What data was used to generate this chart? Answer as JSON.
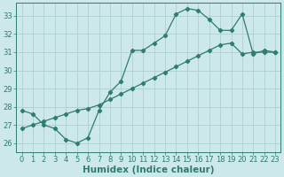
{
  "line1_x": [
    0,
    1,
    2,
    3,
    4,
    5,
    6,
    7,
    8,
    9,
    10,
    11,
    12,
    13,
    14,
    15,
    16,
    17,
    18,
    19,
    20,
    21,
    22,
    23
  ],
  "line1_y": [
    27.8,
    27.6,
    27.0,
    26.8,
    26.2,
    26.0,
    26.3,
    27.8,
    28.8,
    29.4,
    31.1,
    31.1,
    31.5,
    31.9,
    33.1,
    33.4,
    33.3,
    32.8,
    32.2,
    32.2,
    33.1,
    30.9,
    31.1,
    31.0
  ],
  "line2_x": [
    0,
    1,
    2,
    3,
    4,
    5,
    6,
    7,
    8,
    9,
    10,
    11,
    12,
    13,
    14,
    15,
    16,
    17,
    18,
    19,
    20,
    21,
    22,
    23
  ],
  "line2_y": [
    26.8,
    27.0,
    27.2,
    27.4,
    27.6,
    27.8,
    27.9,
    28.1,
    28.4,
    28.7,
    29.0,
    29.3,
    29.6,
    29.9,
    30.2,
    30.5,
    30.8,
    31.1,
    31.4,
    31.5,
    30.9,
    31.0,
    31.0,
    31.0
  ],
  "color": "#2e7d6e",
  "bg_color": "#cde8e8",
  "grid_color": "#afd0d0",
  "xlabel": "Humidex (Indice chaleur)",
  "xlim": [
    -0.5,
    23.5
  ],
  "ylim": [
    25.5,
    33.7
  ],
  "yticks": [
    26,
    27,
    28,
    29,
    30,
    31,
    32,
    33
  ],
  "xticks": [
    0,
    1,
    2,
    3,
    4,
    5,
    6,
    7,
    8,
    9,
    10,
    11,
    12,
    13,
    14,
    15,
    16,
    17,
    18,
    19,
    20,
    21,
    22,
    23
  ],
  "marker": "D",
  "markersize": 2.2,
  "linewidth": 0.9,
  "xlabel_fontsize": 7.5,
  "tick_fontsize": 6.0
}
